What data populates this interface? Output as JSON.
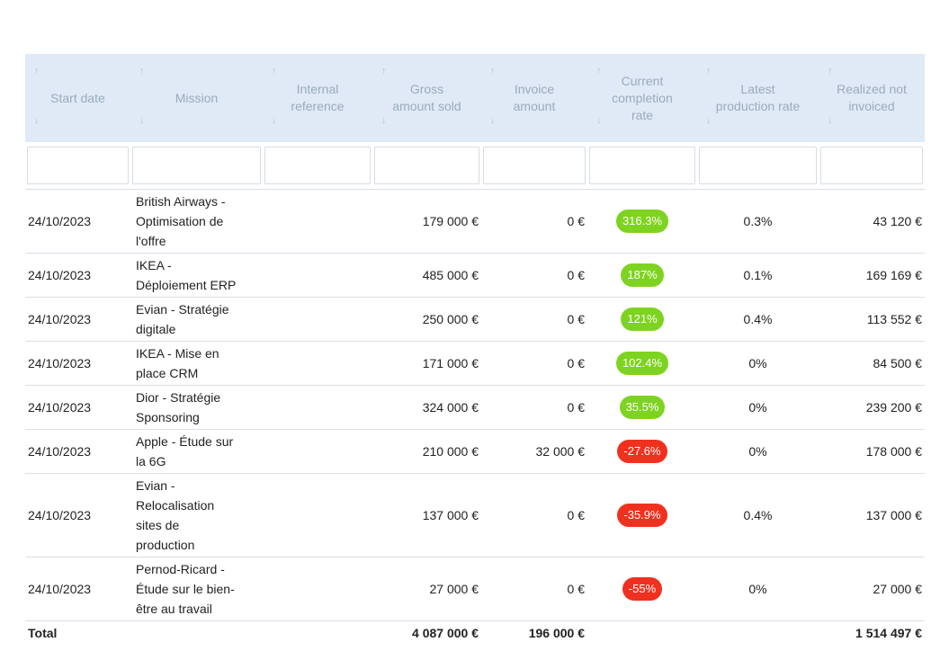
{
  "table": {
    "columns": [
      "Start date",
      "Mission",
      "Internal reference",
      "Gross amount sold",
      "Invoice amount",
      "Current completion rate",
      "Latest production rate",
      "Realized not invoiced"
    ],
    "rows": [
      {
        "start_date": "24/10/2023",
        "mission": "British Airways - Optimisation de l'offre",
        "gross_amount_sold": "179 000 €",
        "invoice_amount": "0 €",
        "current_completion_rate": "316.3%",
        "latest_production_rate": "0.3%",
        "realized_not_invoiced": "43 120 €"
      },
      {
        "start_date": "24/10/2023",
        "mission": "IKEA - Déploiement ERP",
        "gross_amount_sold": "485 000 €",
        "invoice_amount": "0 €",
        "current_completion_rate": "187%",
        "latest_production_rate": "0.1%",
        "realized_not_invoiced": "169 169 €"
      },
      {
        "start_date": "24/10/2023",
        "mission": "Evian - Stratégie digitale",
        "gross_amount_sold": "250 000 €",
        "invoice_amount": "0 €",
        "current_completion_rate": "121%",
        "latest_production_rate": "0.4%",
        "realized_not_invoiced": "113 552 €"
      },
      {
        "start_date": "24/10/2023",
        "mission": "IKEA - Mise en place CRM",
        "gross_amount_sold": "171 000 €",
        "invoice_amount": "0 €",
        "current_completion_rate": "102.4%",
        "latest_production_rate": "0%",
        "realized_not_invoiced": "84 500 €"
      },
      {
        "start_date": "24/10/2023",
        "mission": "Dior - Stratégie Sponsoring",
        "gross_amount_sold": "324 000 €",
        "invoice_amount": "0 €",
        "current_completion_rate": "35.5%",
        "latest_production_rate": "0%",
        "realized_not_invoiced": "239 200 €"
      },
      {
        "start_date": "24/10/2023",
        "mission": "Apple - Étude sur la 6G",
        "gross_amount_sold": "210 000 €",
        "invoice_amount": "32 000 €",
        "current_completion_rate": "-27.6%",
        "latest_production_rate": "0%",
        "realized_not_invoiced": "178 000 €"
      },
      {
        "start_date": "24/10/2023",
        "mission": "Evian - Relocalisation sites de production",
        "gross_amount_sold": "137 000 €",
        "invoice_amount": "0 €",
        "current_completion_rate": "-35.9%",
        "latest_production_rate": "0.4%",
        "realized_not_invoiced": "137 000 €"
      },
      {
        "start_date": "24/10/2023",
        "mission": "Pernod-Ricard - Étude sur le bien-être au travail",
        "gross_amount_sold": "27 000 €",
        "invoice_amount": "0 €",
        "current_completion_rate": "-55%",
        "latest_production_rate": "0%",
        "realized_not_invoiced": "27 000 €"
      }
    ],
    "total": {
      "label": "Total",
      "gross_amount_sold": "4 087 000 €",
      "invoice_amount": "196 000 €",
      "realized_not_invoiced": "1 514 497 €"
    }
  }
}
